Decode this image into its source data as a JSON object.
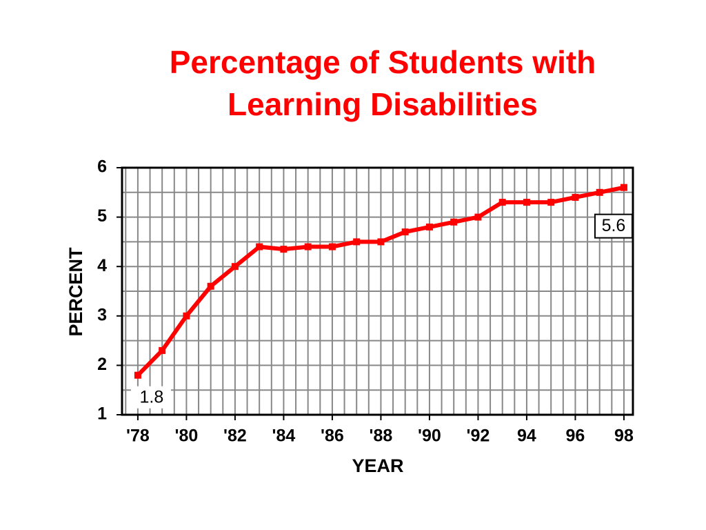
{
  "chart_data": {
    "type": "line",
    "title_lines": [
      "Percentage of Students with",
      "Learning Disabilities"
    ],
    "x_label": "YEAR",
    "y_label": "PERCENT",
    "x": [
      1978,
      1979,
      1980,
      1981,
      1982,
      1983,
      1984,
      1985,
      1986,
      1987,
      1988,
      1989,
      1990,
      1991,
      1992,
      1993,
      1994,
      1995,
      1996,
      1997,
      1998
    ],
    "values": [
      1.8,
      2.3,
      3.0,
      3.6,
      4.0,
      4.4,
      4.35,
      4.4,
      4.4,
      4.5,
      4.5,
      4.7,
      4.8,
      4.9,
      5.0,
      5.3,
      5.3,
      5.3,
      5.4,
      5.5,
      5.6
    ],
    "color": "#ff0000",
    "xlim": [
      1977.35,
      1998.37
    ],
    "xticks": [
      {
        "value": 1978,
        "label": "'78"
      },
      {
        "value": 1980,
        "label": "'80"
      },
      {
        "value": 1982,
        "label": "'82"
      },
      {
        "value": 1984,
        "label": "'84"
      },
      {
        "value": 1986,
        "label": "'86"
      },
      {
        "value": 1988,
        "label": "'88"
      },
      {
        "value": 1990,
        "label": "'90"
      },
      {
        "value": 1992,
        "label": "'92"
      },
      {
        "value": 1994,
        "label": "94"
      },
      {
        "value": 1996,
        "label": "96"
      },
      {
        "value": 1998,
        "label": "98"
      }
    ],
    "ylim": [
      1,
      6
    ],
    "yticks": [
      1,
      2,
      3,
      4,
      5,
      6
    ],
    "grid": true,
    "minor_grid": {
      "x": 3,
      "y": 1
    }
  }
}
